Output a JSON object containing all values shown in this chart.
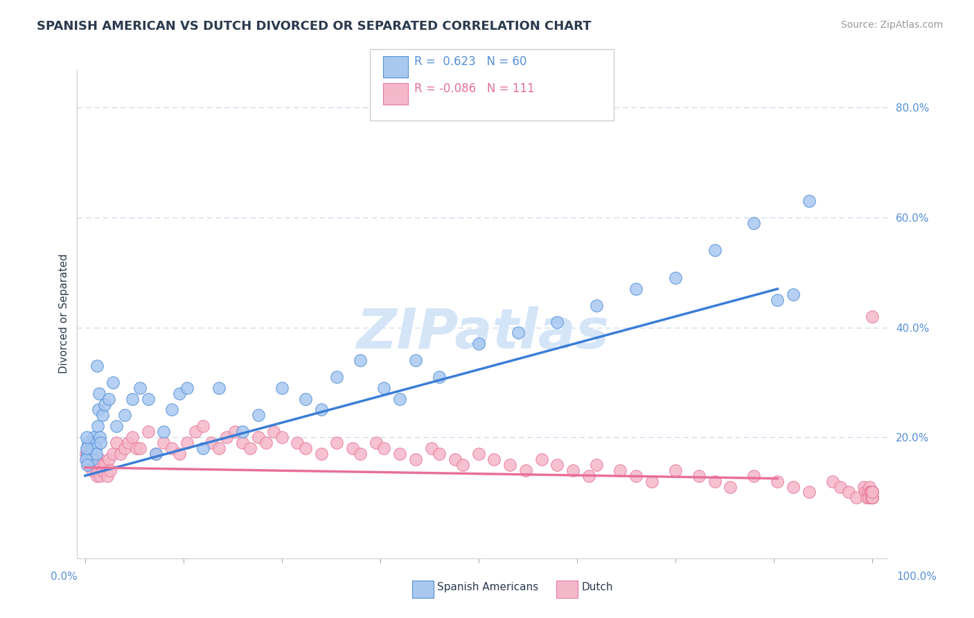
{
  "title": "SPANISH AMERICAN VS DUTCH DIVORCED OR SEPARATED CORRELATION CHART",
  "source_text": "Source: ZipAtlas.com",
  "ylabel": "Divorced or Separated",
  "xlim": [
    -0.01,
    1.02
  ],
  "ylim": [
    -0.02,
    0.87
  ],
  "ytick_values": [
    0.2,
    0.4,
    0.6,
    0.8
  ],
  "ytick_labels": [
    "20.0%",
    "40.0%",
    "60.0%",
    "80.0%"
  ],
  "watermark": "ZIPatlas",
  "blue_color": "#A8C8F0",
  "blue_edge_color": "#5590D8",
  "blue_line_color": "#3B7DD8",
  "pink_color": "#F5B8CB",
  "pink_edge_color": "#E87898",
  "pink_line_color": "#E87098",
  "title_color": "#2B3A4E",
  "source_color": "#999999",
  "tick_color": "#5590D8",
  "grid_color": "#C8D8EC",
  "bg_color": "#FFFFFF",
  "watermark_color": "#D5E5F8",
  "legend_border_color": "#CCCCCC",
  "title_fontsize": 13,
  "source_fontsize": 10,
  "ylabel_fontsize": 11,
  "tick_fontsize": 11,
  "legend_fontsize": 12,
  "watermark_fontsize": 58,
  "blue_R": "0.623",
  "blue_N": "60",
  "pink_R": "-0.086",
  "pink_N": "111",
  "blue_line_x": [
    0.0,
    0.88
  ],
  "blue_line_y": [
    0.13,
    0.47
  ],
  "pink_line_x": [
    0.0,
    0.88
  ],
  "pink_line_y": [
    0.145,
    0.125
  ],
  "blue_x": [
    0.003,
    0.004,
    0.005,
    0.006,
    0.007,
    0.008,
    0.009,
    0.01,
    0.011,
    0.012,
    0.013,
    0.014,
    0.015,
    0.016,
    0.017,
    0.018,
    0.019,
    0.02,
    0.022,
    0.025,
    0.03,
    0.035,
    0.04,
    0.05,
    0.06,
    0.07,
    0.08,
    0.09,
    0.1,
    0.11,
    0.12,
    0.13,
    0.15,
    0.17,
    0.2,
    0.22,
    0.25,
    0.28,
    0.3,
    0.32,
    0.35,
    0.38,
    0.4,
    0.42,
    0.45,
    0.5,
    0.55,
    0.6,
    0.65,
    0.7,
    0.75,
    0.8,
    0.85,
    0.88,
    0.9,
    0.92,
    0.001,
    0.002,
    0.002,
    0.003
  ],
  "blue_y": [
    0.17,
    0.19,
    0.16,
    0.18,
    0.17,
    0.19,
    0.16,
    0.18,
    0.2,
    0.19,
    0.18,
    0.17,
    0.33,
    0.22,
    0.25,
    0.28,
    0.2,
    0.19,
    0.24,
    0.26,
    0.27,
    0.3,
    0.22,
    0.24,
    0.27,
    0.29,
    0.27,
    0.17,
    0.21,
    0.25,
    0.28,
    0.29,
    0.18,
    0.29,
    0.21,
    0.24,
    0.29,
    0.27,
    0.25,
    0.31,
    0.34,
    0.29,
    0.27,
    0.34,
    0.31,
    0.37,
    0.39,
    0.41,
    0.44,
    0.47,
    0.49,
    0.54,
    0.59,
    0.45,
    0.46,
    0.63,
    0.16,
    0.18,
    0.2,
    0.15
  ],
  "pink_x": [
    0.001,
    0.002,
    0.003,
    0.004,
    0.005,
    0.006,
    0.007,
    0.008,
    0.009,
    0.01,
    0.011,
    0.012,
    0.013,
    0.014,
    0.015,
    0.016,
    0.017,
    0.018,
    0.019,
    0.02,
    0.022,
    0.025,
    0.028,
    0.03,
    0.032,
    0.035,
    0.04,
    0.045,
    0.05,
    0.055,
    0.06,
    0.065,
    0.07,
    0.08,
    0.09,
    0.1,
    0.11,
    0.12,
    0.13,
    0.14,
    0.15,
    0.16,
    0.17,
    0.18,
    0.19,
    0.2,
    0.21,
    0.22,
    0.23,
    0.24,
    0.25,
    0.27,
    0.28,
    0.3,
    0.32,
    0.34,
    0.35,
    0.37,
    0.38,
    0.4,
    0.42,
    0.44,
    0.45,
    0.47,
    0.48,
    0.5,
    0.52,
    0.54,
    0.56,
    0.58,
    0.6,
    0.62,
    0.64,
    0.65,
    0.68,
    0.7,
    0.72,
    0.75,
    0.78,
    0.8,
    0.82,
    0.85,
    0.88,
    0.9,
    0.92,
    0.95,
    0.96,
    0.97,
    0.98,
    0.99,
    0.991,
    0.993,
    0.995,
    0.996,
    0.997,
    0.998,
    0.999,
    0.9992,
    0.9995,
    0.9997,
    0.9998,
    0.9999,
    0.99992,
    0.99995,
    0.99997,
    0.99998,
    0.99999,
    0.999995,
    0.999997,
    0.9999985,
    0.999999
  ],
  "pink_y": [
    0.17,
    0.16,
    0.18,
    0.15,
    0.17,
    0.16,
    0.15,
    0.17,
    0.14,
    0.16,
    0.16,
    0.15,
    0.14,
    0.16,
    0.13,
    0.15,
    0.14,
    0.16,
    0.13,
    0.15,
    0.14,
    0.15,
    0.13,
    0.16,
    0.14,
    0.17,
    0.19,
    0.17,
    0.18,
    0.19,
    0.2,
    0.18,
    0.18,
    0.21,
    0.17,
    0.19,
    0.18,
    0.17,
    0.19,
    0.21,
    0.22,
    0.19,
    0.18,
    0.2,
    0.21,
    0.19,
    0.18,
    0.2,
    0.19,
    0.21,
    0.2,
    0.19,
    0.18,
    0.17,
    0.19,
    0.18,
    0.17,
    0.19,
    0.18,
    0.17,
    0.16,
    0.18,
    0.17,
    0.16,
    0.15,
    0.17,
    0.16,
    0.15,
    0.14,
    0.16,
    0.15,
    0.14,
    0.13,
    0.15,
    0.14,
    0.13,
    0.12,
    0.14,
    0.13,
    0.12,
    0.11,
    0.13,
    0.12,
    0.11,
    0.1,
    0.12,
    0.11,
    0.1,
    0.09,
    0.11,
    0.1,
    0.09,
    0.1,
    0.09,
    0.11,
    0.1,
    0.09,
    0.1,
    0.09,
    0.1,
    0.09,
    0.1,
    0.09,
    0.1,
    0.09,
    0.1,
    0.09,
    0.1,
    0.09,
    0.1,
    0.42
  ]
}
